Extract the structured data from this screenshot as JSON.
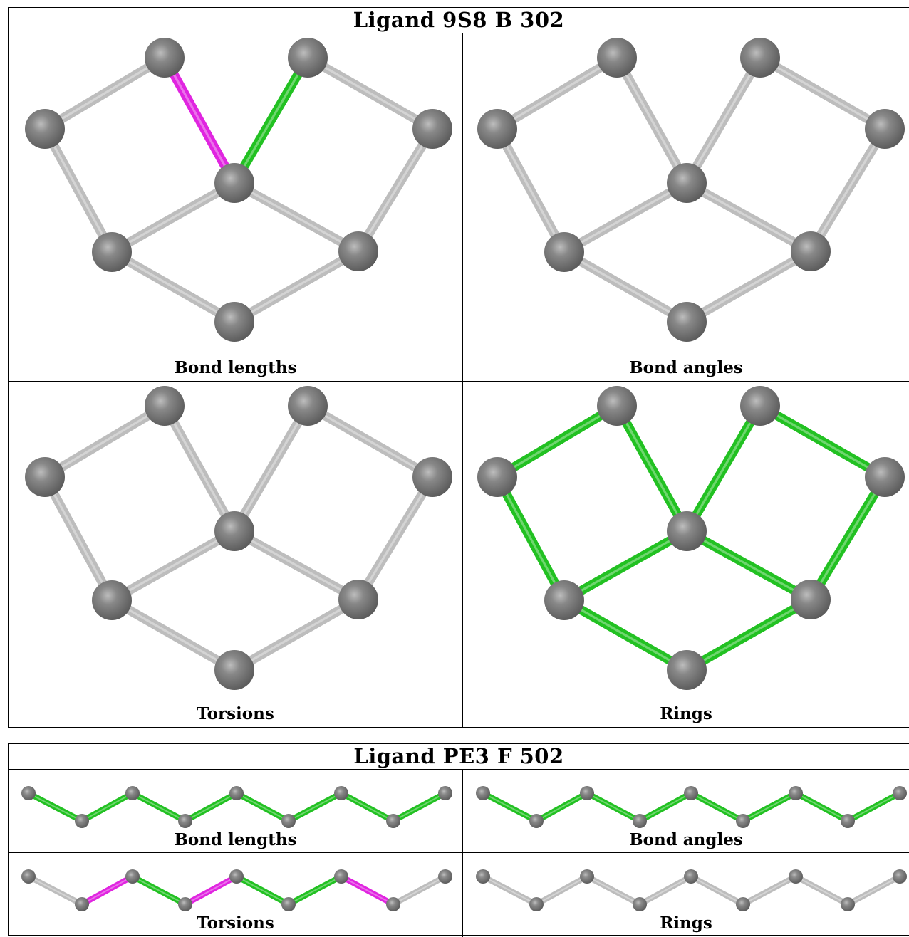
{
  "colors": {
    "bond_default": "#bdbdbd",
    "bond_green": "#22c122",
    "bond_magenta": "#e025e0",
    "atom": "#7a7a7a"
  },
  "ligands": [
    {
      "title": "Ligand 9S8 B 302",
      "panels": [
        {
          "caption": "Bond lengths",
          "highlights": {
            "1-2": "magenta",
            "2-3": "green"
          }
        },
        {
          "caption": "Bond angles",
          "highlights": {}
        },
        {
          "caption": "Torsions",
          "highlights": {}
        },
        {
          "caption": "Rings",
          "all": "green",
          "highlights": {}
        }
      ]
    },
    {
      "title": "Ligand PE3 F 502",
      "panels": [
        {
          "caption": "Bond lengths",
          "all": "green",
          "highlights": {}
        },
        {
          "caption": "Bond angles",
          "all": "green",
          "highlights": {}
        },
        {
          "caption": "Torsions",
          "all": "green",
          "highlights": {
            "0-1": "grey",
            "1-2": "magenta",
            "3-4": "magenta",
            "6-7": "magenta",
            "7-8": "grey"
          }
        },
        {
          "caption": "Rings",
          "highlights": {}
        }
      ]
    }
  ]
}
